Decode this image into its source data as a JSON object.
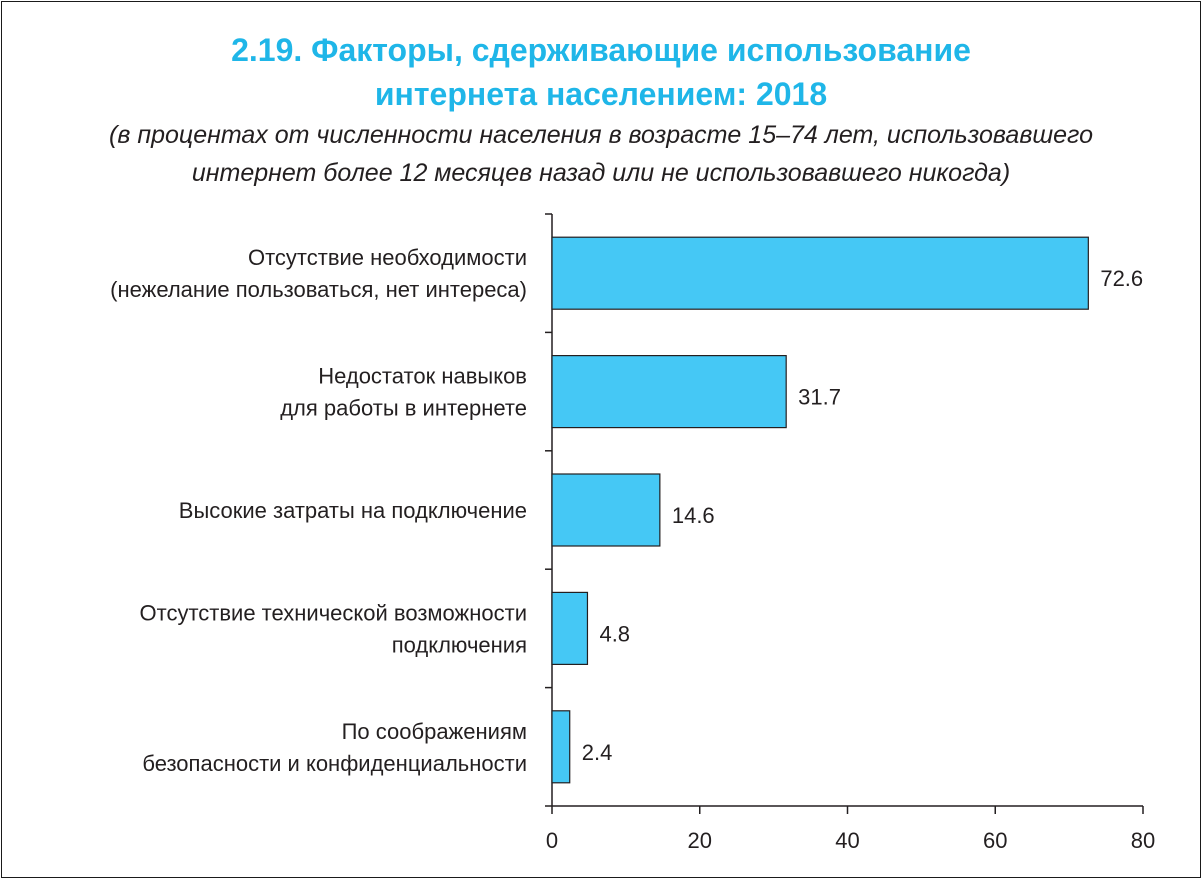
{
  "chart_data": {
    "type": "bar",
    "orientation": "horizontal",
    "title_lines": [
      "2.19. Факторы, сдерживающие использование",
      "интернета населением: 2018"
    ],
    "subtitle_lines": [
      "(в процентах от численности населения в возрасте 15–74 лет, использовавшего",
      "интернет более 12 месяцев назад или не использовавшего никогда)"
    ],
    "categories": [
      [
        "Отсутствие необходимости",
        "(нежелание пользоваться, нет интереса)"
      ],
      [
        "Недостаток навыков",
        "для работы в интернете"
      ],
      [
        "Высокие затраты на подключение"
      ],
      [
        "Отсутствие технической возможности",
        "подключения"
      ],
      [
        "По соображениям",
        "безопасности и конфиденциальности"
      ]
    ],
    "values": [
      72.6,
      31.7,
      14.6,
      4.8,
      2.4
    ],
    "value_labels": [
      "72.6",
      "31.7",
      "14.6",
      "4.8",
      "2.4"
    ],
    "xlim": [
      0,
      80
    ],
    "xticks": [
      0,
      20,
      40,
      60,
      80
    ],
    "grid": false,
    "bar_color": "#45c8f5",
    "bar_edge_color": "#231f20"
  }
}
